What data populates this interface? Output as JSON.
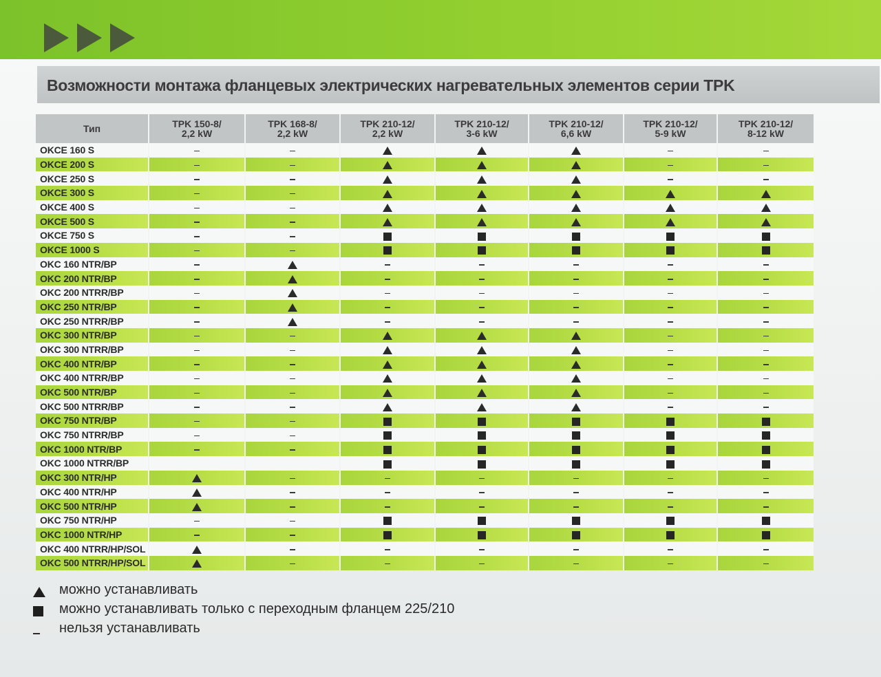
{
  "title": "Возможности монтажа фланцевых электрических нагревательных элементов серии TPK",
  "colors": {
    "accent_green": "#8fcc2f",
    "row_green": "#b4dc45",
    "header_grey": "#c2c5c6"
  },
  "columns": [
    {
      "line1": "Тип",
      "line2": ""
    },
    {
      "line1": "TPK 150-8/",
      "line2": "2,2 kW"
    },
    {
      "line1": "TPK 168-8/",
      "line2": "2,2 kW"
    },
    {
      "line1": "TPK 210-12/",
      "line2": "2,2 kW"
    },
    {
      "line1": "TPK 210-12/",
      "line2": "3-6 kW"
    },
    {
      "line1": "TPK 210-12/",
      "line2": "6,6 kW"
    },
    {
      "line1": "TPK 210-12/",
      "line2": "5-9 kW"
    },
    {
      "line1": "TPK 210-12/",
      "line2": "8-12 kW"
    }
  ],
  "rows": [
    {
      "name": "OKCE 160 S",
      "cells": [
        "dash",
        "dash",
        "triangle",
        "triangle",
        "triangle",
        "dash",
        "dash"
      ]
    },
    {
      "name": "OKCE 200 S",
      "cells": [
        "dash",
        "dash",
        "triangle",
        "triangle",
        "triangle",
        "dash",
        "dash"
      ]
    },
    {
      "name": "OKCE 250 S",
      "cells": [
        "dash",
        "dash",
        "triangle",
        "triangle",
        "triangle",
        "dash",
        "dash"
      ]
    },
    {
      "name": "OKCE 300 S",
      "cells": [
        "dash",
        "dash",
        "triangle",
        "triangle",
        "triangle",
        "triangle",
        "triangle"
      ]
    },
    {
      "name": "OKCE 400 S",
      "cells": [
        "dash",
        "dash",
        "triangle",
        "triangle",
        "triangle",
        "triangle",
        "triangle"
      ]
    },
    {
      "name": "OKCE 500 S",
      "cells": [
        "dash",
        "dash",
        "triangle",
        "triangle",
        "triangle",
        "triangle",
        "triangle"
      ]
    },
    {
      "name": "OKCE 750 S",
      "cells": [
        "dash",
        "dash",
        "square",
        "square",
        "square",
        "square",
        "square"
      ]
    },
    {
      "name": "OKCE 1000 S",
      "cells": [
        "dash",
        "dash",
        "square",
        "square",
        "square",
        "square",
        "square"
      ]
    },
    {
      "name": "OKC 160 NTR/BP",
      "cells": [
        "dash",
        "triangle",
        "dash",
        "dash",
        "dash",
        "dash",
        "dash"
      ]
    },
    {
      "name": "OKC 200 NTR/BP",
      "cells": [
        "dash",
        "triangle",
        "dash",
        "dash",
        "dash",
        "dash",
        "dash"
      ]
    },
    {
      "name": "OKC 200 NTRR/BP",
      "cells": [
        "dash",
        "triangle",
        "dash",
        "dash",
        "dash",
        "dash",
        "dash"
      ]
    },
    {
      "name": "OKC 250 NTR/BP",
      "cells": [
        "dash",
        "triangle",
        "dash",
        "dash",
        "dash",
        "dash",
        "dash"
      ]
    },
    {
      "name": "OKC 250 NTRR/BP",
      "cells": [
        "dash",
        "triangle",
        "dash",
        "dash",
        "dash",
        "dash",
        "dash"
      ]
    },
    {
      "name": "OKC 300 NTR/BP",
      "cells": [
        "dash",
        "dash",
        "triangle",
        "triangle",
        "triangle",
        "dash",
        "dash"
      ]
    },
    {
      "name": "OKC 300 NTRR/BP",
      "cells": [
        "dash",
        "dash",
        "triangle",
        "triangle",
        "triangle",
        "dash",
        "dash"
      ]
    },
    {
      "name": "OKC 400 NTR/BP",
      "cells": [
        "dash",
        "dash",
        "triangle",
        "triangle",
        "triangle",
        "dash",
        "dash"
      ]
    },
    {
      "name": "OKC 400 NTRR/BP",
      "cells": [
        "dash",
        "dash",
        "triangle",
        "triangle",
        "triangle",
        "dash",
        "dash"
      ]
    },
    {
      "name": "OKC 500 NTR/BP",
      "cells": [
        "dash",
        "dash",
        "triangle",
        "triangle",
        "triangle",
        "dash",
        "dash"
      ]
    },
    {
      "name": "OKC 500 NTRR/BP",
      "cells": [
        "dash",
        "dash",
        "triangle",
        "triangle",
        "triangle",
        "dash",
        "dash"
      ]
    },
    {
      "name": "OKC 750 NTR/BP",
      "cells": [
        "dash",
        "dash",
        "square",
        "square",
        "square",
        "square",
        "square"
      ]
    },
    {
      "name": "OKC 750 NTRR/BP",
      "cells": [
        "dash",
        "dash",
        "square",
        "square",
        "square",
        "square",
        "square"
      ]
    },
    {
      "name": "OKC 1000 NTR/BP",
      "cells": [
        "dash",
        "dash",
        "square",
        "square",
        "square",
        "square",
        "square"
      ]
    },
    {
      "name": "OKC 1000 NTRR/BP",
      "cells": [
        "",
        "",
        "square",
        "square",
        "square",
        "square",
        "square"
      ]
    },
    {
      "name": "OKC 300 NTR/HP",
      "cells": [
        "triangle",
        "dash",
        "dash",
        "dash",
        "dash",
        "dash",
        "dash"
      ]
    },
    {
      "name": "OKC 400 NTR/HP",
      "cells": [
        "triangle",
        "dash",
        "dash",
        "dash",
        "dash",
        "dash",
        "dash"
      ]
    },
    {
      "name": "OKC 500 NTR/HP",
      "cells": [
        "triangle",
        "dash",
        "dash",
        "dash",
        "dash",
        "dash",
        "dash"
      ]
    },
    {
      "name": "OKC 750 NTR/HP",
      "cells": [
        "dash",
        "dash",
        "square",
        "square",
        "square",
        "square",
        "square"
      ]
    },
    {
      "name": "OKC 1000 NTR/HP",
      "cells": [
        "dash",
        "dash",
        "square",
        "square",
        "square",
        "square",
        "square"
      ]
    },
    {
      "name": "OKC 400 NTRR/HP/SOL",
      "cells": [
        "triangle",
        "dash",
        "dash",
        "dash",
        "dash",
        "dash",
        "dash"
      ]
    },
    {
      "name": "OKC 500 NTRR/HP/SOL",
      "cells": [
        "triangle",
        "dash",
        "dash",
        "dash",
        "dash",
        "dash",
        "dash"
      ]
    }
  ],
  "legend": [
    {
      "symbol": "triangle",
      "text": "можно устанавливать"
    },
    {
      "symbol": "square",
      "text": "можно устанавливать только с переходным фланцем 225/210"
    },
    {
      "symbol": "dash",
      "text": "нельзя устанавливать"
    }
  ]
}
